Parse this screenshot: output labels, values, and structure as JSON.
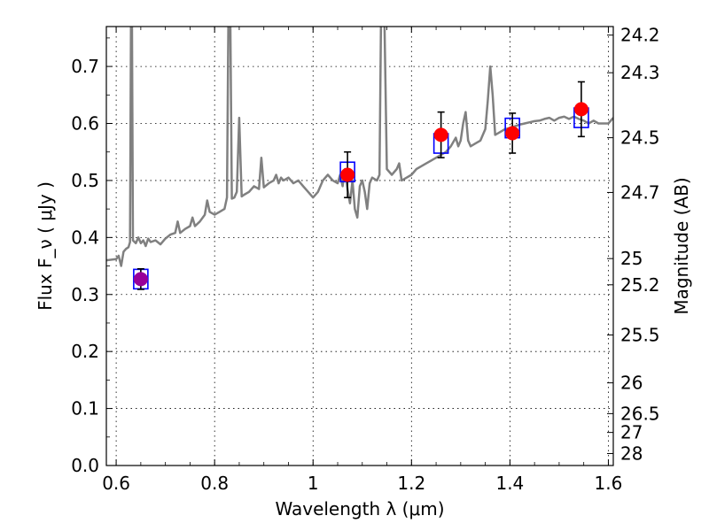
{
  "chart_data": {
    "type": "scatter",
    "xlabel": "Wavelength  λ (μm)",
    "ylabel_left": "Flux  F_ν  ( μJy )",
    "ylabel_right": "Magnitude (AB)",
    "xlim": [
      0.58,
      1.61
    ],
    "ylim": [
      0.0,
      0.77
    ],
    "x_ticks": [
      0.6,
      0.8,
      1.0,
      1.2,
      1.4,
      1.6
    ],
    "x_tick_labels": [
      "0.6",
      "0.8",
      "1",
      "1.2",
      "1.4",
      "1.6"
    ],
    "y_ticks": [
      0.0,
      0.1,
      0.2,
      0.3,
      0.4,
      0.5,
      0.6,
      0.7
    ],
    "y_tick_labels": [
      "0.0",
      "0.1",
      "0.2",
      "0.3",
      "0.4",
      "0.5",
      "0.6",
      "0.7"
    ],
    "right_ticks": [
      {
        "flux": 0.755,
        "label": "24.2"
      },
      {
        "flux": 0.689,
        "label": "24.3"
      },
      {
        "flux": 0.575,
        "label": "24.5"
      },
      {
        "flux": 0.479,
        "label": "24.7"
      },
      {
        "flux": 0.363,
        "label": "25"
      },
      {
        "flux": 0.317,
        "label": "25.2"
      },
      {
        "flux": 0.229,
        "label": "25.5"
      },
      {
        "flux": 0.145,
        "label": "26"
      },
      {
        "flux": 0.091,
        "label": "26.5"
      },
      {
        "flux": 0.058,
        "label": "27"
      },
      {
        "flux": 0.021,
        "label": "28"
      }
    ],
    "grid": true,
    "model_spectrum": {
      "color": "#808080",
      "points": [
        [
          0.58,
          0.36
        ],
        [
          0.6,
          0.362
        ],
        [
          0.605,
          0.368
        ],
        [
          0.61,
          0.35
        ],
        [
          0.615,
          0.375
        ],
        [
          0.62,
          0.38
        ],
        [
          0.625,
          0.383
        ],
        [
          0.628,
          0.392
        ],
        [
          0.63,
          0.78
        ],
        [
          0.632,
          0.78
        ],
        [
          0.634,
          0.395
        ],
        [
          0.64,
          0.39
        ],
        [
          0.645,
          0.4
        ],
        [
          0.65,
          0.39
        ],
        [
          0.655,
          0.395
        ],
        [
          0.66,
          0.385
        ],
        [
          0.665,
          0.398
        ],
        [
          0.67,
          0.392
        ],
        [
          0.68,
          0.395
        ],
        [
          0.69,
          0.388
        ],
        [
          0.7,
          0.398
        ],
        [
          0.71,
          0.405
        ],
        [
          0.72,
          0.408
        ],
        [
          0.725,
          0.428
        ],
        [
          0.73,
          0.408
        ],
        [
          0.74,
          0.415
        ],
        [
          0.75,
          0.42
        ],
        [
          0.755,
          0.435
        ],
        [
          0.76,
          0.42
        ],
        [
          0.77,
          0.428
        ],
        [
          0.78,
          0.44
        ],
        [
          0.785,
          0.465
        ],
        [
          0.79,
          0.445
        ],
        [
          0.8,
          0.44
        ],
        [
          0.81,
          0.445
        ],
        [
          0.82,
          0.45
        ],
        [
          0.825,
          0.47
        ],
        [
          0.828,
          0.78
        ],
        [
          0.832,
          0.78
        ],
        [
          0.835,
          0.468
        ],
        [
          0.84,
          0.47
        ],
        [
          0.845,
          0.48
        ],
        [
          0.85,
          0.61
        ],
        [
          0.855,
          0.472
        ],
        [
          0.86,
          0.475
        ],
        [
          0.87,
          0.48
        ],
        [
          0.88,
          0.49
        ],
        [
          0.89,
          0.485
        ],
        [
          0.895,
          0.54
        ],
        [
          0.9,
          0.488
        ],
        [
          0.91,
          0.495
        ],
        [
          0.92,
          0.5
        ],
        [
          0.925,
          0.51
        ],
        [
          0.93,
          0.495
        ],
        [
          0.935,
          0.505
        ],
        [
          0.94,
          0.5
        ],
        [
          0.95,
          0.505
        ],
        [
          0.96,
          0.495
        ],
        [
          0.97,
          0.5
        ],
        [
          0.98,
          0.49
        ],
        [
          0.99,
          0.48
        ],
        [
          1.0,
          0.47
        ],
        [
          1.01,
          0.48
        ],
        [
          1.02,
          0.5
        ],
        [
          1.03,
          0.51
        ],
        [
          1.04,
          0.5
        ],
        [
          1.05,
          0.495
        ],
        [
          1.055,
          0.51
        ],
        [
          1.06,
          0.49
        ],
        [
          1.065,
          0.52
        ],
        [
          1.07,
          0.485
        ],
        [
          1.075,
          0.46
        ],
        [
          1.08,
          0.5
        ],
        [
          1.085,
          0.45
        ],
        [
          1.09,
          0.435
        ],
        [
          1.095,
          0.49
        ],
        [
          1.1,
          0.5
        ],
        [
          1.105,
          0.48
        ],
        [
          1.11,
          0.45
        ],
        [
          1.115,
          0.495
        ],
        [
          1.12,
          0.505
        ],
        [
          1.13,
          0.5
        ],
        [
          1.135,
          0.51
        ],
        [
          1.138,
          0.78
        ],
        [
          1.145,
          0.78
        ],
        [
          1.15,
          0.52
        ],
        [
          1.16,
          0.51
        ],
        [
          1.17,
          0.52
        ],
        [
          1.175,
          0.53
        ],
        [
          1.18,
          0.5
        ],
        [
          1.19,
          0.505
        ],
        [
          1.2,
          0.51
        ],
        [
          1.21,
          0.52
        ],
        [
          1.22,
          0.525
        ],
        [
          1.23,
          0.53
        ],
        [
          1.24,
          0.535
        ],
        [
          1.25,
          0.54
        ],
        [
          1.26,
          0.545
        ],
        [
          1.27,
          0.55
        ],
        [
          1.28,
          0.56
        ],
        [
          1.29,
          0.575
        ],
        [
          1.295,
          0.56
        ],
        [
          1.3,
          0.57
        ],
        [
          1.305,
          0.6
        ],
        [
          1.31,
          0.62
        ],
        [
          1.315,
          0.57
        ],
        [
          1.32,
          0.56
        ],
        [
          1.33,
          0.565
        ],
        [
          1.34,
          0.57
        ],
        [
          1.35,
          0.59
        ],
        [
          1.355,
          0.64
        ],
        [
          1.36,
          0.7
        ],
        [
          1.365,
          0.65
        ],
        [
          1.37,
          0.58
        ],
        [
          1.38,
          0.585
        ],
        [
          1.39,
          0.59
        ],
        [
          1.4,
          0.592
        ],
        [
          1.41,
          0.595
        ],
        [
          1.42,
          0.598
        ],
        [
          1.43,
          0.6
        ],
        [
          1.44,
          0.602
        ],
        [
          1.45,
          0.604
        ],
        [
          1.46,
          0.605
        ],
        [
          1.47,
          0.608
        ],
        [
          1.48,
          0.61
        ],
        [
          1.49,
          0.605
        ],
        [
          1.5,
          0.61
        ],
        [
          1.51,
          0.612
        ],
        [
          1.52,
          0.608
        ],
        [
          1.53,
          0.612
        ],
        [
          1.54,
          0.608
        ],
        [
          1.55,
          0.605
        ],
        [
          1.56,
          0.6
        ],
        [
          1.57,
          0.605
        ],
        [
          1.58,
          0.6
        ],
        [
          1.59,
          0.6
        ],
        [
          1.6,
          0.6
        ],
        [
          1.61,
          0.61
        ]
      ]
    },
    "observed_points": [
      {
        "x": 1.07,
        "y": 0.51,
        "err": 0.04,
        "color": "#ff0000"
      },
      {
        "x": 1.26,
        "y": 0.58,
        "err": 0.04,
        "color": "#ff0000"
      },
      {
        "x": 1.405,
        "y": 0.583,
        "err": 0.035,
        "color": "#ff0000"
      },
      {
        "x": 1.545,
        "y": 0.625,
        "err": 0.048,
        "color": "#ff0000"
      },
      {
        "x": 0.65,
        "y": 0.327,
        "err": 0.018,
        "color": "#990099"
      }
    ],
    "model_photometry": [
      {
        "x": 0.65,
        "y": 0.327
      },
      {
        "x": 1.07,
        "y": 0.515
      },
      {
        "x": 1.26,
        "y": 0.565
      },
      {
        "x": 1.405,
        "y": 0.592
      },
      {
        "x": 1.545,
        "y": 0.61
      }
    ],
    "colors": {
      "spectrum": "#808080",
      "observed": "#ff0000",
      "observed_alt": "#990099",
      "model_box": "#0000ff"
    }
  }
}
